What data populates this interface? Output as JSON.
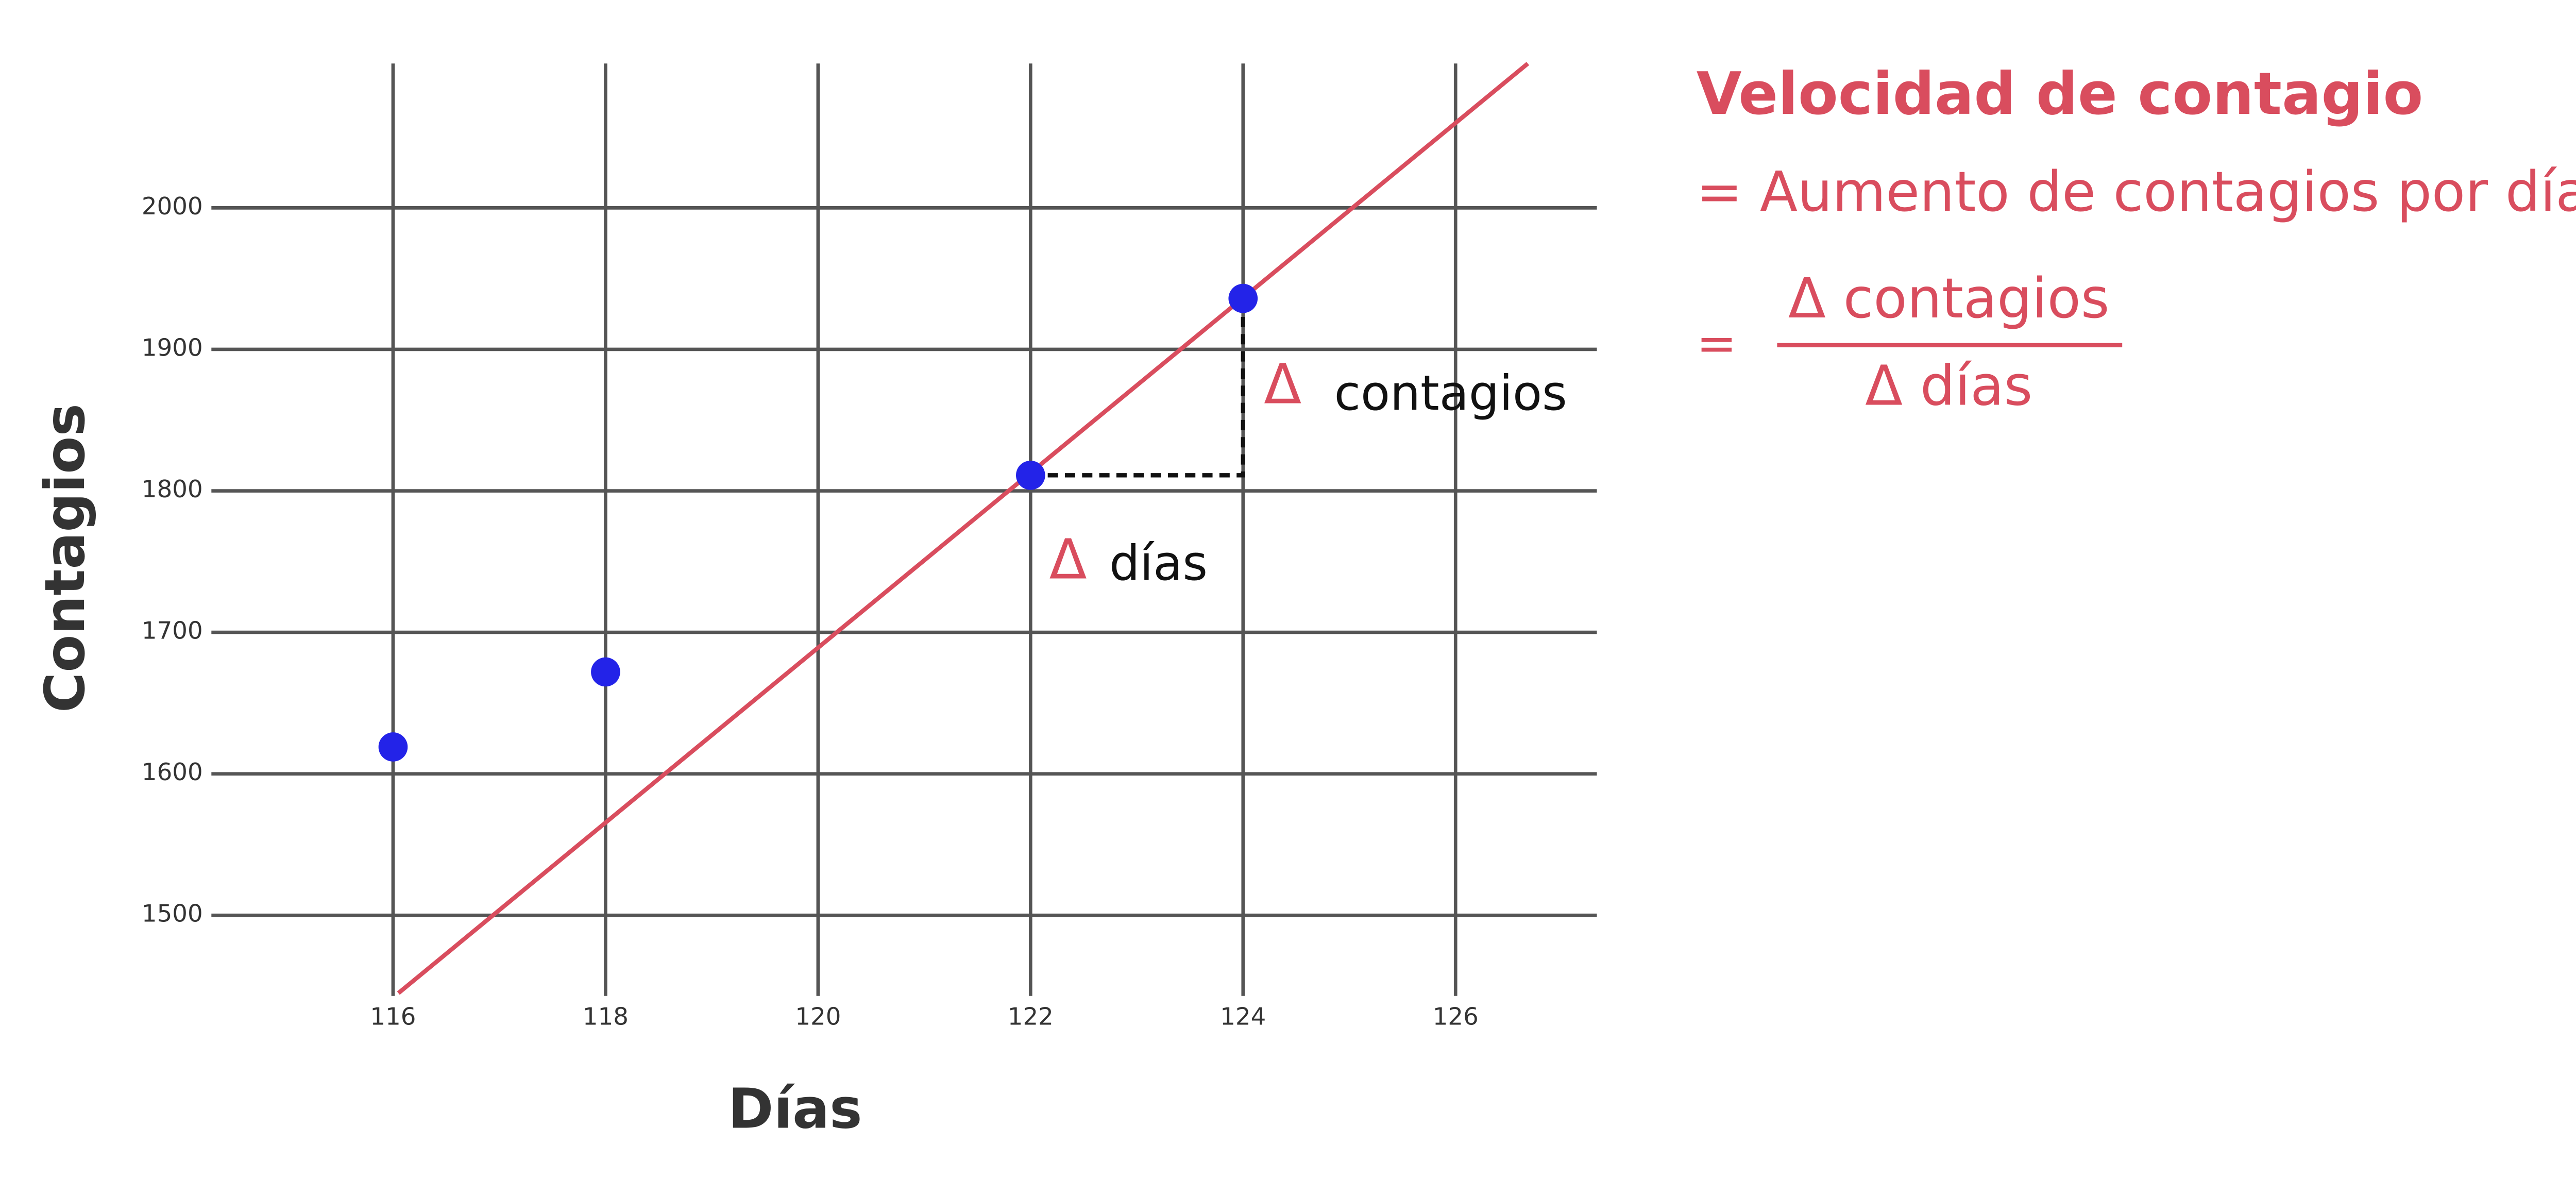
{
  "chart_data": {
    "type": "scatter",
    "x_label": "Días",
    "y_label": "Contagios",
    "xlim": [
      114.29,
      127.33
    ],
    "ylim": [
      1443,
      2102
    ],
    "xticks": [
      116,
      118,
      120,
      122,
      124,
      126
    ],
    "yticks": [
      1500,
      1600,
      1700,
      1800,
      1900,
      2000
    ],
    "grid": true,
    "series": [
      {
        "type": "scatter",
        "color": "#2323e8",
        "x": [
          116,
          118,
          122,
          124
        ],
        "values": [
          1619,
          1672,
          1811,
          1936
        ]
      },
      {
        "type": "line",
        "color": "#d94d5e",
        "x": [
          116.05,
          126.68
        ],
        "values": [
          1445,
          2102
        ]
      }
    ],
    "annotations": [
      {
        "symbol": "Δ",
        "text": "contagios"
      },
      {
        "symbol": "Δ",
        "text": "días"
      }
    ]
  },
  "formula": {
    "title": "Velocidad de contagio",
    "definition": "= Aumento de contagios por día",
    "equals": "=",
    "numerator": "Δ contagios",
    "denominator": "Δ días"
  }
}
